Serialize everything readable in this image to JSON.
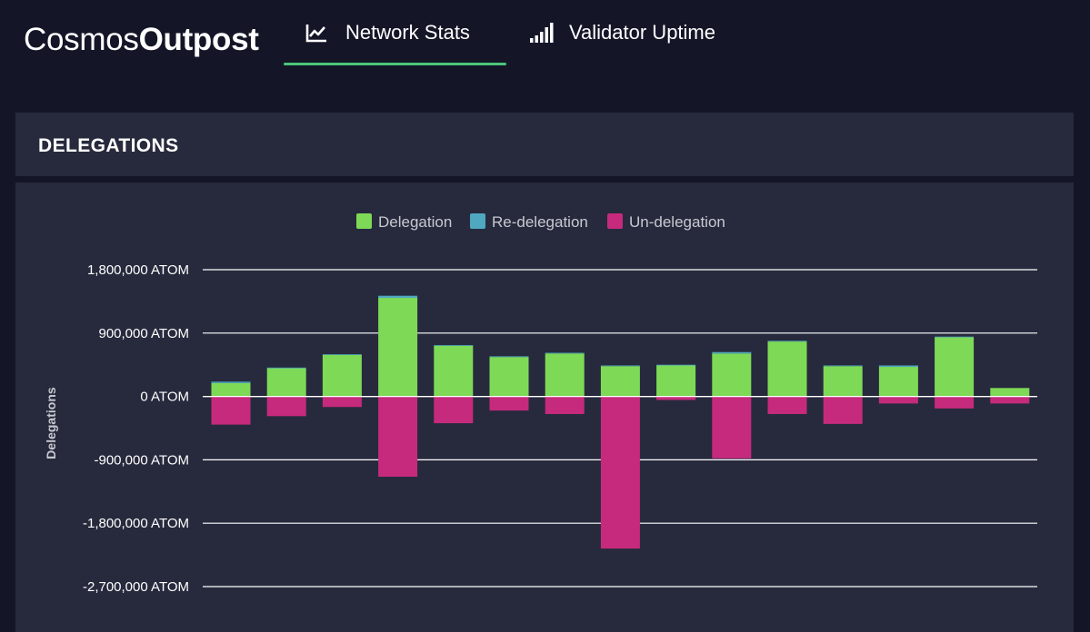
{
  "header": {
    "brand_light": "Cosmos",
    "brand_bold": "Outpost",
    "tabs": [
      {
        "label": "Network Stats",
        "icon": "line-chart-icon",
        "active": true
      },
      {
        "label": "Validator Uptime",
        "icon": "signal-bars-icon",
        "active": false
      }
    ],
    "accent_color": "#4cc47a"
  },
  "panel": {
    "title": "DELEGATIONS"
  },
  "chart_data": {
    "type": "bar",
    "stacked": true,
    "ylabel": "Delegations",
    "ylim": [
      -2700000,
      1800000
    ],
    "yticks": [
      1800000,
      900000,
      0,
      -900000,
      -1800000,
      -2700000
    ],
    "ytick_labels": [
      "1,800,000 ATOM",
      "900,000 ATOM",
      "0 ATOM",
      "-900,000 ATOM",
      "-1,800,000 ATOM",
      "-2,700,000 ATOM"
    ],
    "grid": true,
    "legend_position": "top-center",
    "series": [
      {
        "name": "Delegation",
        "color": "#7ed957",
        "values": [
          190000,
          400000,
          590000,
          1400000,
          720000,
          560000,
          610000,
          430000,
          440000,
          610000,
          780000,
          430000,
          420000,
          840000,
          120000
        ]
      },
      {
        "name": "Re-delegation",
        "color": "#4fa8c0",
        "values": [
          20000,
          10000,
          10000,
          30000,
          10000,
          10000,
          10000,
          10000,
          10000,
          20000,
          10000,
          10000,
          20000,
          10000,
          0
        ]
      },
      {
        "name": "Un-delegation",
        "color": "#c62a7c",
        "values": [
          -400000,
          -280000,
          -150000,
          -1140000,
          -380000,
          -200000,
          -250000,
          -2160000,
          -50000,
          -880000,
          -250000,
          -390000,
          -100000,
          -170000,
          -100000
        ]
      }
    ]
  }
}
